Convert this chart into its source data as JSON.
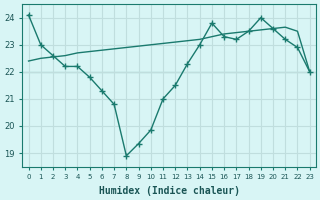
{
  "xlabel": "Humidex (Indice chaleur)",
  "ylabel": "",
  "background_color": "#d8f5f5",
  "grid_color": "#c0dede",
  "line_color": "#1a7a6e",
  "x_values": [
    0,
    1,
    2,
    3,
    4,
    5,
    6,
    7,
    8,
    9,
    10,
    11,
    12,
    13,
    14,
    15,
    16,
    17,
    18,
    19,
    20,
    21,
    22,
    23
  ],
  "y_main": [
    24.1,
    23.0,
    22.6,
    22.2,
    22.2,
    21.8,
    21.3,
    20.8,
    18.9,
    19.35,
    19.85,
    21.0,
    21.5,
    22.3,
    23.0,
    23.8,
    23.3,
    23.2,
    23.5,
    24.0,
    23.6,
    23.2,
    22.9,
    22.0
  ],
  "y_smooth": [
    22.4,
    22.5,
    22.55,
    22.6,
    22.7,
    22.75,
    22.8,
    22.85,
    22.9,
    22.95,
    23.0,
    23.05,
    23.1,
    23.15,
    23.2,
    23.3,
    23.4,
    23.45,
    23.5,
    23.55,
    23.6,
    23.65,
    23.5,
    22.0
  ],
  "ylim": [
    18.5,
    24.5
  ],
  "xlim": [
    -0.5,
    23.5
  ],
  "yticks": [
    19,
    20,
    21,
    22,
    23,
    24
  ],
  "xticks": [
    0,
    1,
    2,
    3,
    4,
    5,
    6,
    7,
    8,
    9,
    10,
    11,
    12,
    13,
    14,
    15,
    16,
    17,
    18,
    19,
    20,
    21,
    22,
    23
  ],
  "tick_color": "#1a5555",
  "hline_y": 22
}
